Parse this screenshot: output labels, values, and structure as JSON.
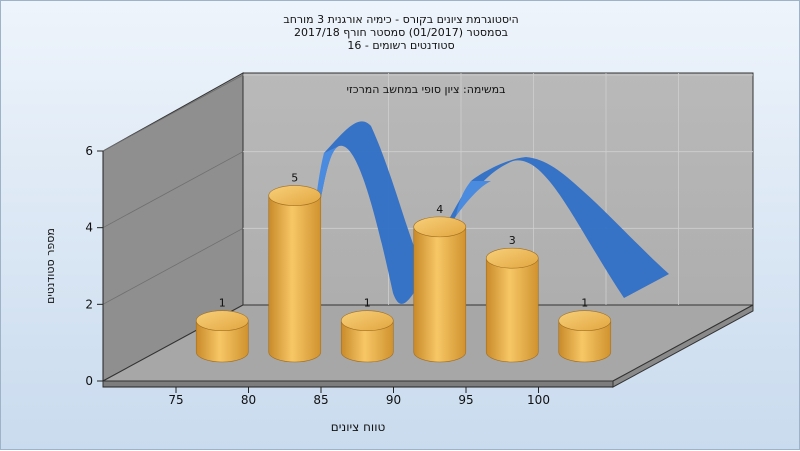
{
  "chart_data": {
    "type": "bar",
    "title_lines": [
      "היסטוגרמת ציונים בקורס - כימיה אורגנית 3 מורחב",
      "בסמסטר  (01/2017)  סמסטר חורף 2017/18",
      "סטודנטים רשומים - 16"
    ],
    "subtitle": "במשימה: ציון סופי במחשב המרכזי",
    "xlabel": "טווח ציונים",
    "ylabel": "מספר סטודנטים",
    "x_ticks": [
      "75",
      "80",
      "85",
      "90",
      "95",
      "100"
    ],
    "y_ticks": [
      "0",
      "2",
      "4",
      "6"
    ],
    "ylim": [
      0,
      6
    ],
    "grid": true,
    "bars": [
      {
        "x": 77.5,
        "value": 1,
        "label": "1"
      },
      {
        "x": 82.5,
        "value": 5,
        "label": "5"
      },
      {
        "x": 87.5,
        "value": 1,
        "label": "1"
      },
      {
        "x": 92.5,
        "value": 4,
        "label": "4"
      },
      {
        "x": 97.5,
        "value": 3,
        "label": "3"
      },
      {
        "x": 102.5,
        "value": 1,
        "label": "1"
      }
    ],
    "curve": {
      "type": "ribbon",
      "color": "#2f6fc6"
    },
    "colors": {
      "bar": "#f0b04a",
      "bar_dark": "#c98a2a",
      "wall": "#b4b4b4",
      "floor": "#a9a9a9"
    }
  }
}
